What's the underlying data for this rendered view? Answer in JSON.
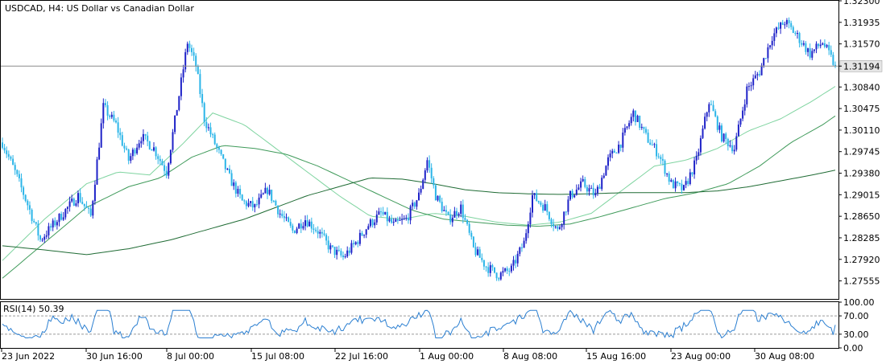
{
  "chart_data": {
    "type": "candlestick",
    "title": "USDCAD, H4:  US Dollar vs Canadian Dollar",
    "symbol": "USDCAD",
    "timeframe": "H4",
    "description": "US Dollar vs Canadian Dollar",
    "ylim": [
      1.2725,
      1.323
    ],
    "y_ticks": [
      "1.32300",
      "1.31935",
      "1.31570",
      "1.31194",
      "1.30840",
      "1.30475",
      "1.30110",
      "1.29745",
      "1.29380",
      "1.29015",
      "1.28650",
      "1.28285",
      "1.27920",
      "1.27555"
    ],
    "current_price": "1.31194",
    "x_ticks": [
      "23 Jun 2022",
      "30 Jun 16:00",
      "8 Jul 00:00",
      "15 Jul 08:00",
      "22 Jul 16:00",
      "1 Aug 00:00",
      "8 Aug 08:00",
      "15 Aug 16:00",
      "23 Aug 00:00",
      "30 Aug 08:00"
    ],
    "close_anchors": [
      [
        0,
        1.299
      ],
      [
        6,
        1.294
      ],
      [
        12,
        1.2885
      ],
      [
        18,
        1.2825
      ],
      [
        24,
        1.285
      ],
      [
        30,
        1.2875
      ],
      [
        36,
        1.29
      ],
      [
        42,
        1.2865
      ],
      [
        48,
        1.305
      ],
      [
        54,
        1.302
      ],
      [
        60,
        1.296
      ],
      [
        66,
        1.3
      ],
      [
        72,
        1.298
      ],
      [
        78,
        1.294
      ],
      [
        84,
        1.307
      ],
      [
        88,
        1.316
      ],
      [
        92,
        1.312
      ],
      [
        96,
        1.303
      ],
      [
        102,
        1.298
      ],
      [
        108,
        1.293
      ],
      [
        114,
        1.289
      ],
      [
        120,
        1.288
      ],
      [
        126,
        1.291
      ],
      [
        132,
        1.287
      ],
      [
        138,
        1.284
      ],
      [
        144,
        1.286
      ],
      [
        150,
        1.284
      ],
      [
        156,
        1.281
      ],
      [
        162,
        1.2795
      ],
      [
        168,
        1.282
      ],
      [
        174,
        1.285
      ],
      [
        180,
        1.287
      ],
      [
        186,
        1.285
      ],
      [
        192,
        1.286
      ],
      [
        198,
        1.29
      ],
      [
        202,
        1.296
      ],
      [
        206,
        1.29
      ],
      [
        212,
        1.286
      ],
      [
        218,
        1.288
      ],
      [
        224,
        1.281
      ],
      [
        230,
        1.278
      ],
      [
        236,
        1.2765
      ],
      [
        242,
        1.2775
      ],
      [
        248,
        1.282
      ],
      [
        252,
        1.29
      ],
      [
        258,
        1.288
      ],
      [
        264,
        1.284
      ],
      [
        270,
        1.29
      ],
      [
        276,
        1.292
      ],
      [
        282,
        1.29
      ],
      [
        288,
        1.296
      ],
      [
        294,
        1.299
      ],
      [
        300,
        1.304
      ],
      [
        306,
        1.3
      ],
      [
        312,
        1.297
      ],
      [
        318,
        1.292
      ],
      [
        324,
        1.291
      ],
      [
        330,
        1.296
      ],
      [
        336,
        1.306
      ],
      [
        342,
        1.3
      ],
      [
        348,
        1.298
      ],
      [
        354,
        1.308
      ],
      [
        360,
        1.311
      ],
      [
        366,
        1.317
      ],
      [
        372,
        1.3195
      ],
      [
        378,
        1.317
      ],
      [
        384,
        1.314
      ],
      [
        390,
        1.316
      ],
      [
        396,
        1.3119
      ]
    ],
    "moving_averages": [
      {
        "color": "#7fd4a0",
        "points": [
          [
            0,
            1.279
          ],
          [
            20,
            1.286
          ],
          [
            40,
            1.292
          ],
          [
            55,
            1.294
          ],
          [
            70,
            1.2935
          ],
          [
            85,
            1.2985
          ],
          [
            100,
            1.304
          ],
          [
            115,
            1.302
          ],
          [
            130,
            1.298
          ],
          [
            145,
            1.294
          ],
          [
            160,
            1.29
          ],
          [
            175,
            1.2865
          ],
          [
            190,
            1.286
          ],
          [
            205,
            1.287
          ],
          [
            220,
            1.2865
          ],
          [
            235,
            1.2855
          ],
          [
            250,
            1.285
          ],
          [
            265,
            1.2855
          ],
          [
            280,
            1.287
          ],
          [
            295,
            1.291
          ],
          [
            310,
            1.295
          ],
          [
            325,
            1.296
          ],
          [
            340,
            1.298
          ],
          [
            355,
            1.301
          ],
          [
            370,
            1.303
          ],
          [
            385,
            1.306
          ],
          [
            396,
            1.3085
          ]
        ]
      },
      {
        "color": "#3f9a5a",
        "points": [
          [
            0,
            1.276
          ],
          [
            20,
            1.282
          ],
          [
            40,
            1.288
          ],
          [
            60,
            1.2915
          ],
          [
            75,
            1.293
          ],
          [
            90,
            1.2965
          ],
          [
            105,
            1.2985
          ],
          [
            120,
            1.298
          ],
          [
            135,
            1.297
          ],
          [
            150,
            1.295
          ],
          [
            165,
            1.2925
          ],
          [
            180,
            1.29
          ],
          [
            195,
            1.2875
          ],
          [
            210,
            1.286
          ],
          [
            225,
            1.2855
          ],
          [
            240,
            1.285
          ],
          [
            255,
            1.2848
          ],
          [
            270,
            1.2852
          ],
          [
            285,
            1.2865
          ],
          [
            300,
            1.288
          ],
          [
            315,
            1.2895
          ],
          [
            330,
            1.2905
          ],
          [
            345,
            1.292
          ],
          [
            360,
            1.295
          ],
          [
            375,
            1.299
          ],
          [
            390,
            1.302
          ],
          [
            396,
            1.3035
          ]
        ]
      },
      {
        "color": "#1f6b34",
        "points": [
          [
            0,
            1.2815
          ],
          [
            20,
            1.2808
          ],
          [
            40,
            1.28
          ],
          [
            60,
            1.281
          ],
          [
            80,
            1.2825
          ],
          [
            100,
            1.2845
          ],
          [
            115,
            1.286
          ],
          [
            130,
            1.288
          ],
          [
            145,
            1.29
          ],
          [
            160,
            1.2915
          ],
          [
            175,
            1.293
          ],
          [
            190,
            1.2928
          ],
          [
            205,
            1.292
          ],
          [
            220,
            1.291
          ],
          [
            235,
            1.2905
          ],
          [
            250,
            1.2903
          ],
          [
            265,
            1.2902
          ],
          [
            280,
            1.2903
          ],
          [
            295,
            1.2905
          ],
          [
            310,
            1.2905
          ],
          [
            325,
            1.2905
          ],
          [
            340,
            1.2908
          ],
          [
            355,
            1.2915
          ],
          [
            370,
            1.2925
          ],
          [
            385,
            1.2935
          ],
          [
            396,
            1.2943
          ]
        ]
      }
    ],
    "rsi": {
      "label": "RSI(14) 50.39",
      "period": 14,
      "value": 50.39,
      "ylim": [
        0,
        100
      ],
      "y_ticks": [
        "100.00",
        "70.00",
        "30.00",
        "0.00"
      ],
      "levels": [
        70,
        30
      ]
    },
    "colors": {
      "bull": "#1e22c8",
      "bear": "#2bb5e8",
      "rsi": "#2b7fd1",
      "price_line": "#8c8c8c",
      "price_label_bg": "#e6e6e6",
      "grid": "#a0a0a0",
      "text": "#000000"
    }
  }
}
